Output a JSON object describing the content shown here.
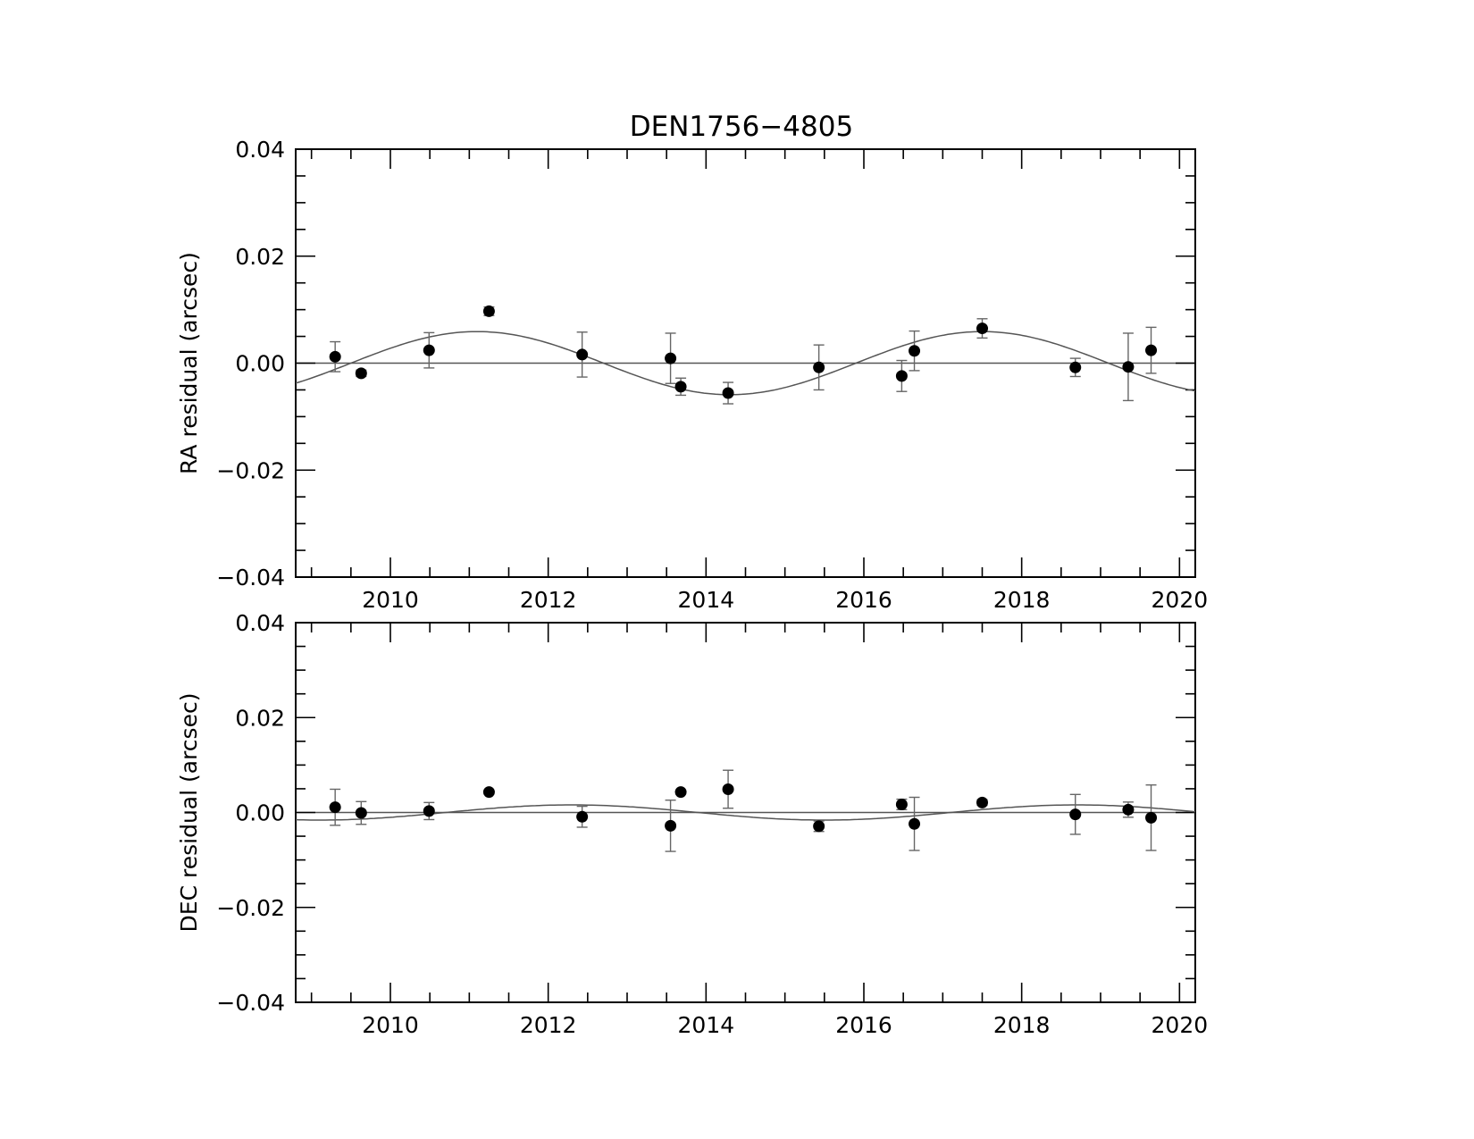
{
  "title": "DEN1756−4805",
  "chart_data": [
    {
      "type": "scatter",
      "ylabel": "RA residual (arcsec)",
      "xlim": [
        2008.8,
        2020.2
      ],
      "ylim": [
        -0.04,
        0.04
      ],
      "xticks": [
        2010,
        2012,
        2014,
        2016,
        2018,
        2020
      ],
      "xtick_labels": [
        "2010",
        "2012",
        "2014",
        "2016",
        "2018",
        "2020"
      ],
      "yticks": [
        -0.04,
        -0.02,
        0.0,
        0.02,
        0.04
      ],
      "ytick_labels": [
        "−0.04",
        "−0.02",
        "0.00",
        "0.02",
        "0.04"
      ],
      "points": [
        {
          "x": 2009.3,
          "y": 0.0012,
          "err": 0.0028
        },
        {
          "x": 2009.63,
          "y": -0.0019,
          "err": 0.0006
        },
        {
          "x": 2010.49,
          "y": 0.0024,
          "err": 0.0033
        },
        {
          "x": 2011.25,
          "y": 0.0097,
          "err": 0.0008
        },
        {
          "x": 2012.43,
          "y": 0.0016,
          "err": 0.0042
        },
        {
          "x": 2013.55,
          "y": 0.0009,
          "err": 0.0047
        },
        {
          "x": 2013.68,
          "y": -0.0044,
          "err": 0.0016
        },
        {
          "x": 2014.28,
          "y": -0.0056,
          "err": 0.002
        },
        {
          "x": 2015.43,
          "y": -0.0008,
          "err": 0.0042
        },
        {
          "x": 2016.48,
          "y": -0.0024,
          "err": 0.0029
        },
        {
          "x": 2016.64,
          "y": 0.0023,
          "err": 0.0037
        },
        {
          "x": 2017.5,
          "y": 0.0065,
          "err": 0.0018
        },
        {
          "x": 2018.68,
          "y": -0.0008,
          "err": 0.0017
        },
        {
          "x": 2019.35,
          "y": -0.0007,
          "err": 0.0063
        },
        {
          "x": 2019.64,
          "y": 0.0024,
          "err": 0.0043
        }
      ],
      "fit_amplitude": 0.0059,
      "fit_period": 6.4,
      "fit_peak_x": 2011.1
    },
    {
      "type": "scatter",
      "ylabel": "DEC residual (arcsec)",
      "xlim": [
        2008.8,
        2020.2
      ],
      "ylim": [
        -0.04,
        0.04
      ],
      "xticks": [
        2010,
        2012,
        2014,
        2016,
        2018,
        2020
      ],
      "xtick_labels": [
        "2010",
        "2012",
        "2014",
        "2016",
        "2018",
        "2020"
      ],
      "yticks": [
        -0.04,
        -0.02,
        0.0,
        0.02,
        0.04
      ],
      "ytick_labels": [
        "−0.04",
        "−0.02",
        "0.00",
        "0.02",
        "0.04"
      ],
      "points": [
        {
          "x": 2009.3,
          "y": 0.0011,
          "err": 0.0038
        },
        {
          "x": 2009.63,
          "y": -0.0001,
          "err": 0.0024
        },
        {
          "x": 2010.49,
          "y": 0.0003,
          "err": 0.0018
        },
        {
          "x": 2011.25,
          "y": 0.0043,
          "err": 0.0004
        },
        {
          "x": 2012.43,
          "y": -0.0009,
          "err": 0.0022
        },
        {
          "x": 2013.55,
          "y": -0.0028,
          "err": 0.0054
        },
        {
          "x": 2013.68,
          "y": 0.0043,
          "err": 0.0004
        },
        {
          "x": 2014.28,
          "y": 0.0049,
          "err": 0.004
        },
        {
          "x": 2015.43,
          "y": -0.0029,
          "err": 0.0011
        },
        {
          "x": 2016.48,
          "y": 0.0017,
          "err": 0.0011
        },
        {
          "x": 2016.64,
          "y": -0.0024,
          "err": 0.0056
        },
        {
          "x": 2017.5,
          "y": 0.0021,
          "err": 0.0006
        },
        {
          "x": 2018.68,
          "y": -0.0004,
          "err": 0.0042
        },
        {
          "x": 2019.35,
          "y": 0.0006,
          "err": 0.0016
        },
        {
          "x": 2019.64,
          "y": -0.0011,
          "err": 0.0069
        }
      ],
      "fit_amplitude": 0.0016,
      "fit_period": 6.4,
      "fit_peak_x": 2012.3
    }
  ]
}
